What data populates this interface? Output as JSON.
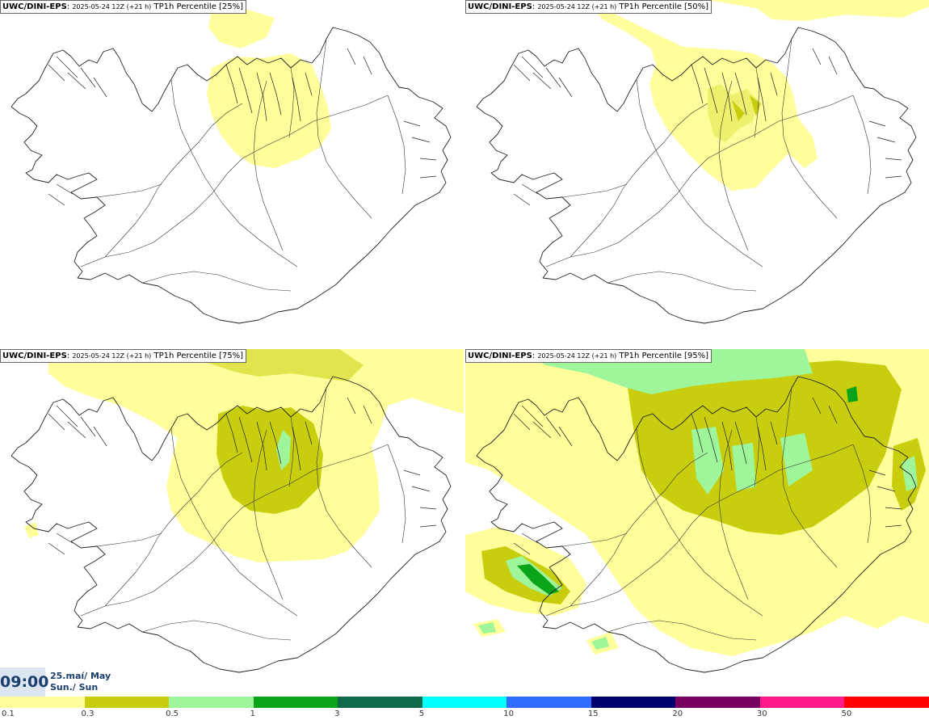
{
  "panels": [
    {
      "model": "UWC/DINI-EPS",
      "run": "2025-05-24 12Z (+21 h)",
      "label": "TP1h Percentile [25%]"
    },
    {
      "model": "UWC/DINI-EPS",
      "run": "2025-05-24 12Z (+21 h)",
      "label": "TP1h Percentile [50%]"
    },
    {
      "model": "UWC/DINI-EPS",
      "run": "2025-05-24 12Z (+21 h)",
      "label": "TP1h Percentile [75%]"
    },
    {
      "model": "UWC/DINI-EPS",
      "run": "2025-05-24 12Z (+21 h)",
      "label": "TP1h Percentile [95%]"
    }
  ],
  "valid_time": {
    "time": "09:00",
    "date": "25.maí/ May",
    "day": "Sun./ Sun"
  },
  "legend": {
    "colors": [
      "#fffe9a",
      "#c8ce0e",
      "#9ef59a",
      "#0aa41b",
      "#106a4a",
      "#00ffff",
      "#2f6bff",
      "#00006e",
      "#780060",
      "#ff1a8c",
      "#ff0000"
    ],
    "ticks": [
      "0.1",
      "0.3",
      "0.5",
      "1",
      "3",
      "5",
      "10",
      "15",
      "20",
      "30",
      "50"
    ]
  }
}
